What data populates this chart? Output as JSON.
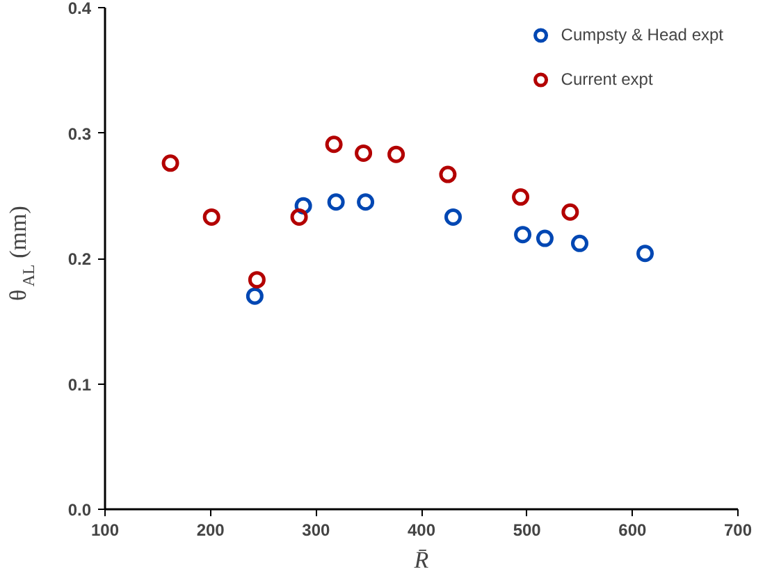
{
  "chart_data": {
    "type": "scatter",
    "xlabel": "R̄",
    "ylabel": "θ$_{AL}$ (mm)",
    "xlim": [
      100,
      700
    ],
    "xticks": [
      100,
      200,
      300,
      400,
      500,
      600,
      700
    ],
    "ylim": [
      0,
      0.4
    ],
    "yticks": [
      {
        "value": 0,
        "label": "0.0"
      },
      0.1,
      0.2,
      0.3,
      0.4
    ],
    "grid": false,
    "legend": "top right",
    "marker": "circle",
    "series": [
      {
        "name": "Cumpsty & Head expt",
        "color": "#0047b3",
        "x": [
          242,
          288,
          319,
          347,
          430,
          496,
          517,
          550,
          612
        ],
        "values": [
          0.17,
          0.242,
          0.245,
          0.245,
          0.233,
          0.219,
          0.216,
          0.212,
          0.204
        ]
      },
      {
        "name": "Current expt",
        "color": "#b30000",
        "x": [
          162,
          201,
          244,
          284,
          317,
          345,
          376,
          425,
          494,
          541
        ],
        "values": [
          0.276,
          0.233,
          0.183,
          0.233,
          0.291,
          0.284,
          0.283,
          0.267,
          0.249,
          0.237
        ]
      }
    ]
  }
}
